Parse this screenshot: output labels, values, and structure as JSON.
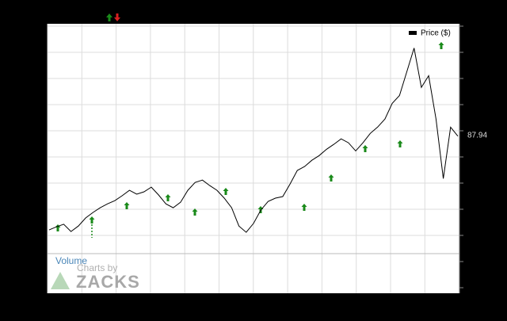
{
  "chart_data": {
    "type": "line",
    "legend": "Price ($)",
    "last_price_label": "87.94",
    "volume_label": "Volume",
    "credit": "Charts by",
    "brand": "ZACKS",
    "series": [
      {
        "name": "Price ($)",
        "color": "#000000",
        "values": [
          52.0,
          53.2,
          54.2,
          51.4,
          53.5,
          56.6,
          58.7,
          60.5,
          62.0,
          63.2,
          65.1,
          67.2,
          65.7,
          66.6,
          68.4,
          65.4,
          62.0,
          60.5,
          62.6,
          67.2,
          70.2,
          71.1,
          69.0,
          67.2,
          64.2,
          60.5,
          53.5,
          51.1,
          54.5,
          59.6,
          62.9,
          64.2,
          64.8,
          69.6,
          74.8,
          76.3,
          78.7,
          80.5,
          82.9,
          84.8,
          86.9,
          85.4,
          82.3,
          85.4,
          89.0,
          91.4,
          94.5,
          100.5,
          103.5,
          112.6,
          121.7,
          106.6,
          111.1,
          94.5,
          71.7,
          91.4,
          87.94
        ]
      }
    ],
    "ylim": [
      49,
      131
    ]
  }
}
